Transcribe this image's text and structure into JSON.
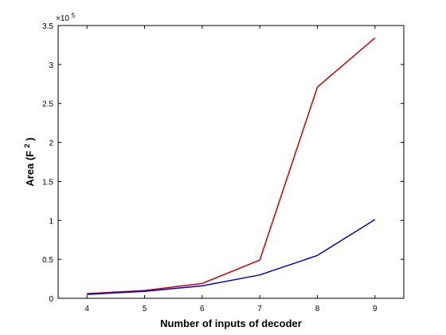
{
  "chart_data": {
    "type": "line",
    "title": "",
    "xlabel": "Number of inputs of decoder",
    "ylabel_main": "Area (F",
    "ylabel_sup": "2",
    "ylabel_end": ")",
    "y_multiplier_base": "×10",
    "y_multiplier_exp": "5",
    "xlim": [
      3.5,
      9.5
    ],
    "ylim": [
      0,
      3.5
    ],
    "x_ticks": [
      4,
      5,
      6,
      7,
      8,
      9
    ],
    "x_tick_labels": [
      "4",
      "5",
      "6",
      "7",
      "8",
      "9"
    ],
    "y_ticks": [
      0,
      0.5,
      1,
      1.5,
      2,
      2.5,
      3,
      3.5
    ],
    "y_tick_labels": [
      "0",
      "0.5",
      "1",
      "1.5",
      "2",
      "2.5",
      "3",
      "3.5"
    ],
    "grid": false,
    "x": [
      4,
      5,
      6,
      7,
      8,
      9
    ],
    "series": [
      {
        "color": "#cc0000",
        "values": [
          0.06,
          0.1,
          0.19,
          0.49,
          2.71,
          3.34
        ]
      },
      {
        "color": "#0000cc",
        "values": [
          0.05,
          0.09,
          0.16,
          0.3,
          0.55,
          1.01
        ]
      }
    ]
  }
}
